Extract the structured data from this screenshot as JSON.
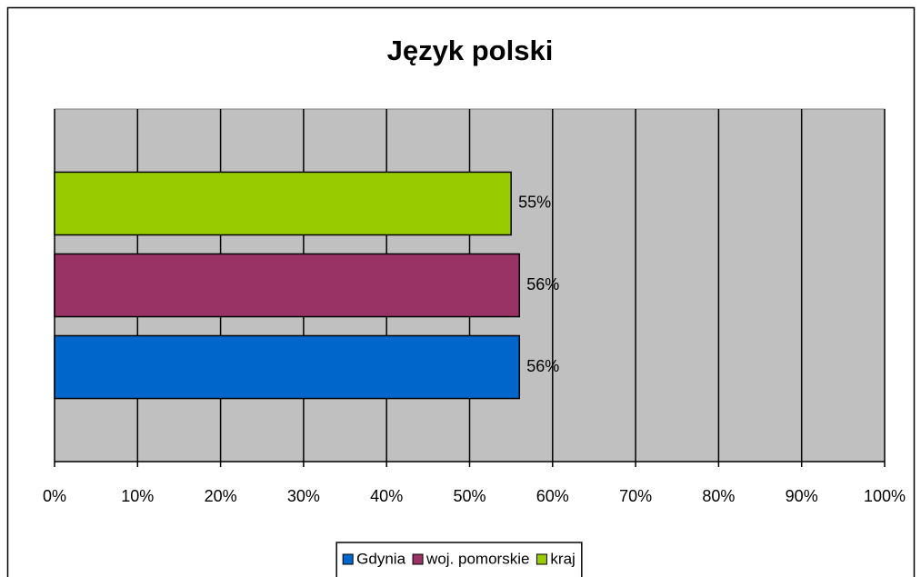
{
  "chart_data": {
    "type": "bar",
    "orientation": "horizontal",
    "title": "Język polski",
    "categories": [
      null
    ],
    "series": [
      {
        "name": "Gdynia",
        "color": "#0066cc",
        "values": [
          56
        ],
        "value_labels": [
          "56%"
        ]
      },
      {
        "name": "woj. pomorskie",
        "color": "#993366",
        "values": [
          56
        ],
        "value_labels": [
          "56%"
        ]
      },
      {
        "name": "kraj",
        "color": "#99cc00",
        "values": [
          55
        ],
        "value_labels": [
          "55%"
        ]
      }
    ],
    "xlim": [
      0,
      100
    ],
    "xticks": [
      {
        "value": 0,
        "label": "0%"
      },
      {
        "value": 10,
        "label": "10%"
      },
      {
        "value": 20,
        "label": "20%"
      },
      {
        "value": 30,
        "label": "30%"
      },
      {
        "value": 40,
        "label": "40%"
      },
      {
        "value": 50,
        "label": "50%"
      },
      {
        "value": 60,
        "label": "60%"
      },
      {
        "value": 70,
        "label": "70%"
      },
      {
        "value": 80,
        "label": "80%"
      },
      {
        "value": 90,
        "label": "90%"
      },
      {
        "value": 100,
        "label": "100%"
      }
    ],
    "grid": true,
    "plot_background": "#c0c0c0",
    "legend": "bottom"
  }
}
